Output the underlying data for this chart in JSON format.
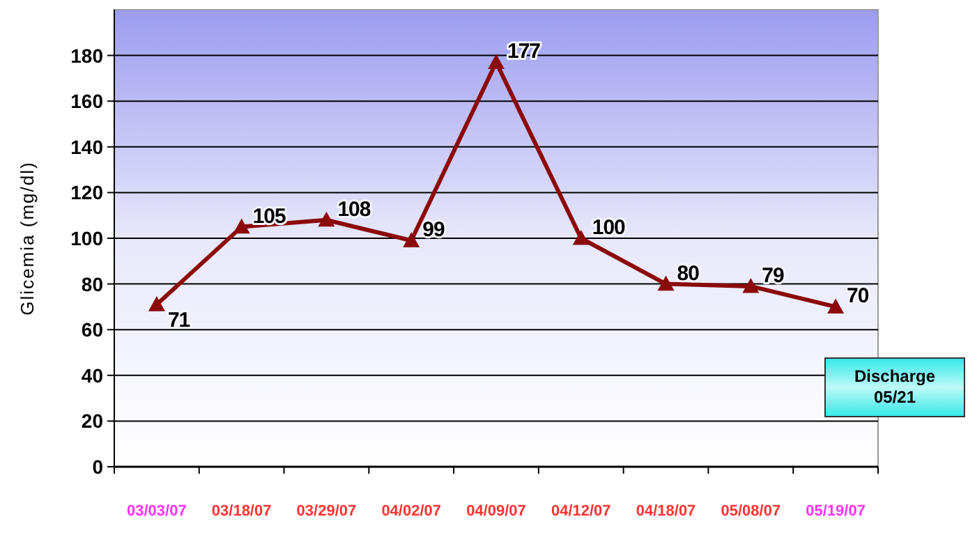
{
  "chart_data": {
    "type": "line",
    "ylabel": "Glicemia (mg/dl)",
    "categories": [
      "03/03/07",
      "03/18/07",
      "03/29/07",
      "04/02/07",
      "04/09/07",
      "04/12/07",
      "04/18/07",
      "05/08/07",
      "05/19/07"
    ],
    "series": [
      {
        "color": "#8b0a0a",
        "values": [
          71,
          105,
          108,
          99,
          177,
          100,
          80,
          79,
          70
        ]
      }
    ],
    "ylim": [
      0,
      200
    ],
    "yticks": [
      0,
      20,
      40,
      60,
      80,
      100,
      120,
      140,
      160,
      180
    ],
    "grid": "y",
    "marker": "triangle",
    "line_style": "solid",
    "data_labels": true,
    "annotations": [
      "Discharge 05/21"
    ]
  }
}
